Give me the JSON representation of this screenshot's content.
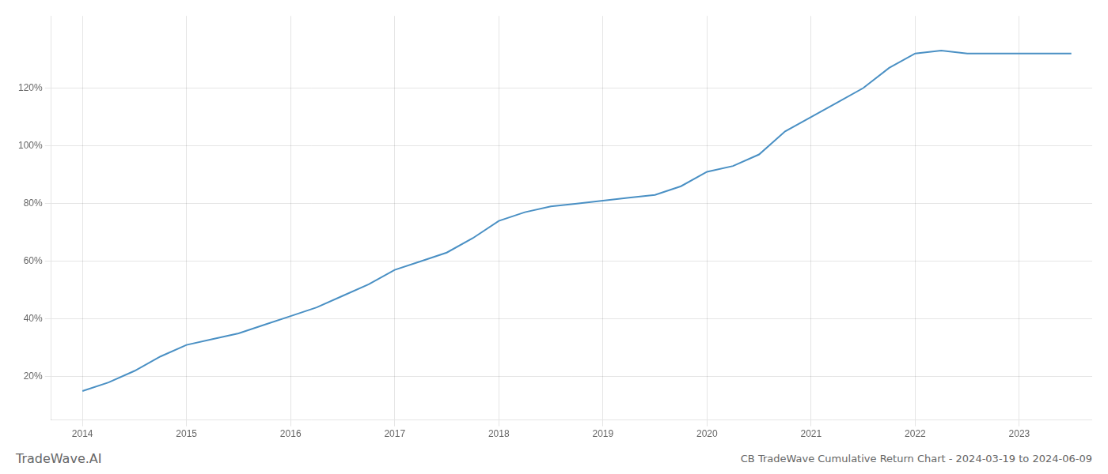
{
  "chart_data": {
    "type": "line",
    "title": "CB TradeWave Cumulative Return Chart - 2024-03-19 to 2024-06-09",
    "annotations": [
      "TradeWave.AI"
    ],
    "x": [
      2014.0,
      2014.25,
      2014.5,
      2014.75,
      2015.0,
      2015.25,
      2015.5,
      2015.75,
      2016.0,
      2016.25,
      2016.5,
      2016.75,
      2017.0,
      2017.25,
      2017.5,
      2017.75,
      2018.0,
      2018.25,
      2018.5,
      2018.75,
      2019.0,
      2019.25,
      2019.5,
      2019.75,
      2020.0,
      2020.25,
      2020.5,
      2020.75,
      2021.0,
      2021.25,
      2021.5,
      2021.75,
      2022.0,
      2022.25,
      2022.5,
      2022.75,
      2023.0,
      2023.25,
      2023.5
    ],
    "values": [
      0.15,
      0.18,
      0.22,
      0.27,
      0.31,
      0.33,
      0.35,
      0.38,
      0.41,
      0.44,
      0.48,
      0.52,
      0.57,
      0.6,
      0.63,
      0.68,
      0.74,
      0.77,
      0.79,
      0.8,
      0.81,
      0.82,
      0.83,
      0.86,
      0.91,
      0.93,
      0.97,
      1.05,
      1.1,
      1.15,
      1.2,
      1.27,
      1.32,
      1.33,
      1.32,
      1.32,
      1.32,
      1.32,
      1.32
    ],
    "color": "#4a90c4",
    "xlim": [
      2013.7,
      2023.7
    ],
    "ylim": [
      0.05,
      1.45
    ],
    "xticks": [
      2014,
      2015,
      2016,
      2017,
      2018,
      2019,
      2020,
      2021,
      2022,
      2023
    ],
    "yticks": [
      {
        "value": 0.2,
        "label": "20%"
      },
      {
        "value": 0.4,
        "label": "40%"
      },
      {
        "value": 0.6,
        "label": "60%"
      },
      {
        "value": 0.8,
        "label": "80%"
      },
      {
        "value": 1.0,
        "label": "100%"
      },
      {
        "value": 1.2,
        "label": "120%"
      }
    ],
    "grid": true
  }
}
